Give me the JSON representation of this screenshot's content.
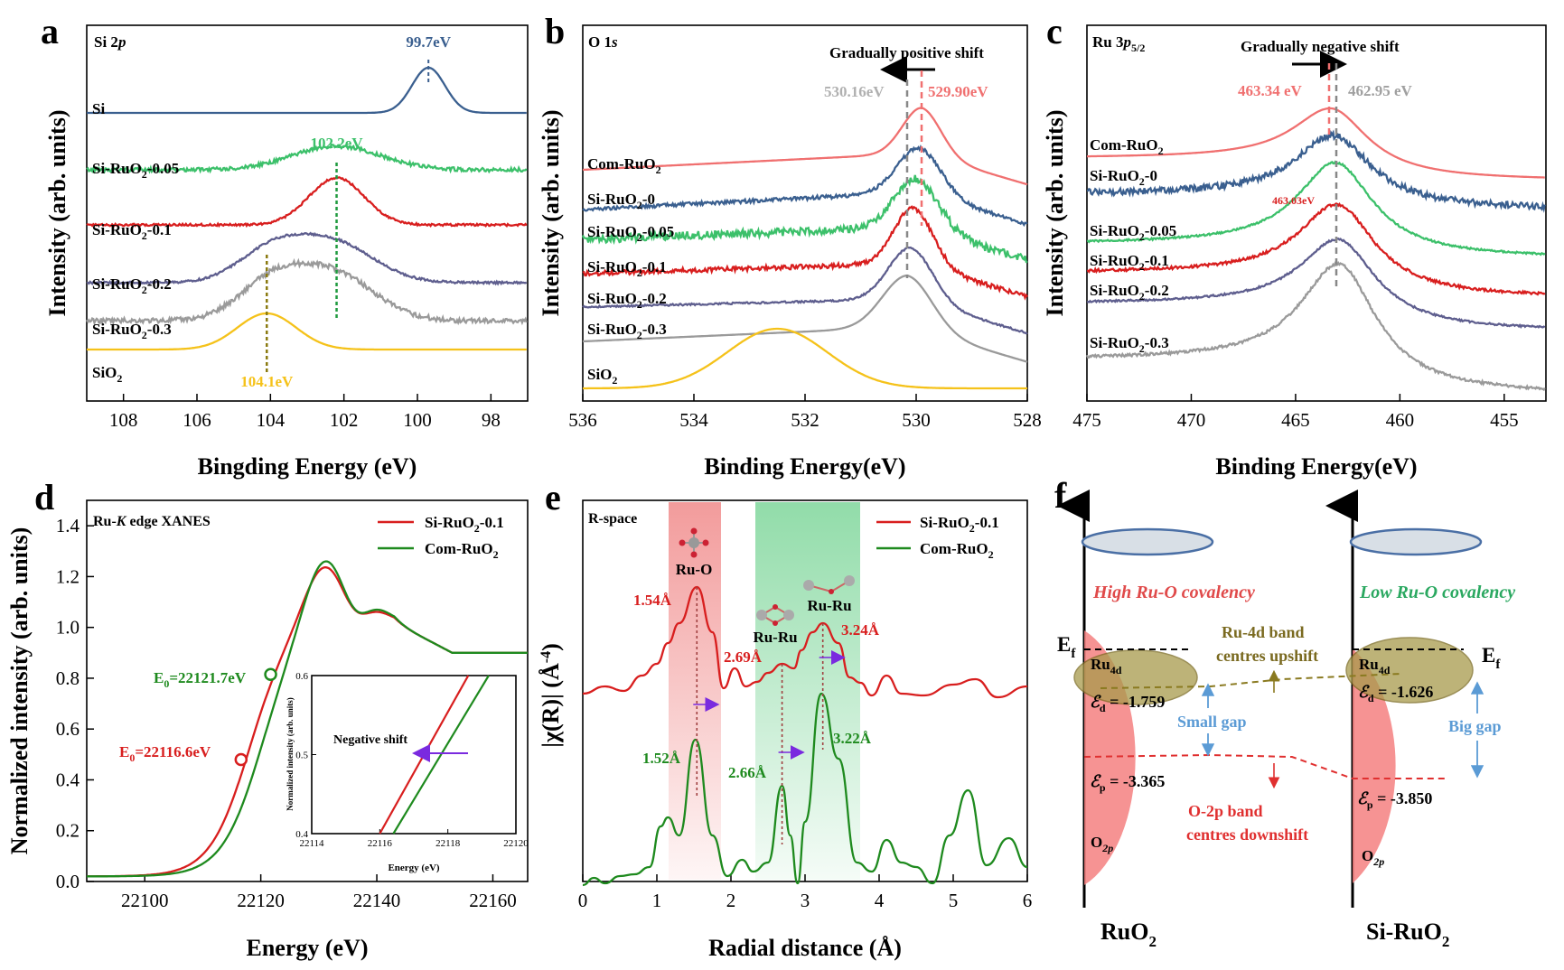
{
  "colors": {
    "blue": "#3a5f8f",
    "green": "#3cc06a",
    "red": "#d81e1e",
    "purple": "#5e5e8e",
    "gray": "#9a9a9a",
    "yellow": "#f5c21a",
    "salmon": "#f07070",
    "darkgreen": "#1e8a1e",
    "olive": "#7a6a20"
  },
  "panels": [
    {
      "id": "a",
      "letter": "a",
      "title": "Si 2p"
    },
    {
      "id": "b",
      "letter": "b",
      "title": "O 1s"
    },
    {
      "id": "c",
      "letter": "c",
      "title": "Ru 3p5/2"
    },
    {
      "id": "d",
      "letter": "d",
      "title": "Ru-K edge XANES"
    },
    {
      "id": "e",
      "letter": "e",
      "title": "R-space"
    },
    {
      "id": "f",
      "letter": "f"
    }
  ],
  "chart_data": [
    {
      "panel": "a",
      "type": "line",
      "title": "Si 2p",
      "xlabel": "Bingding Energy (eV)",
      "ylabel": "Intensity (arb. units)",
      "xlim": [
        109,
        97
      ],
      "x_reversed": true,
      "xticks": [
        108,
        106,
        104,
        102,
        100,
        98
      ],
      "series": [
        {
          "name": "Si",
          "color": "#3a5f8f",
          "peak": 99.7,
          "width": 0.45,
          "height": 1.1,
          "base": 4.55,
          "noise": 0.0
        },
        {
          "name": "Si-RuO2-0.05",
          "color": "#3cc06a",
          "peak": 102.2,
          "width": 1.2,
          "height": 0.55,
          "base": 3.05,
          "noise": 0.07
        },
        {
          "name": "Si-RuO2-0.1",
          "color": "#d81e1e",
          "peak": 102.2,
          "width": 0.75,
          "height": 1.05,
          "base": 2.15,
          "noise": 0.04
        },
        {
          "name": "Si-RuO2-0.2",
          "color": "#5e5e8e",
          "peak": 102.6,
          "width": 1.5,
          "height": 1.0,
          "base": 1.35,
          "noise": 0.04
        },
        {
          "name": "Si-RuO2-0.3",
          "color": "#9a9a9a",
          "peak": 103.0,
          "width": 1.4,
          "height": 1.0,
          "base": 0.55,
          "noise": 0.09
        },
        {
          "name": "SiO2",
          "color": "#f5c21a",
          "peak": 104.1,
          "width": 0.8,
          "height": 0.85,
          "base": 0.0,
          "noise": 0.0
        }
      ],
      "peak_labels": [
        {
          "text": "99.7eV",
          "x": 99.7,
          "color": "#3a5f8f"
        },
        {
          "text": "102.2eV",
          "x": 102.2,
          "color": "#3cc06a"
        },
        {
          "text": "104.1eV",
          "x": 104.1,
          "color": "#f5c21a"
        }
      ]
    },
    {
      "panel": "b",
      "type": "line",
      "title": "O 1s",
      "xlabel": "Binding Energy(eV)",
      "ylabel": "Intensity (arb. units)",
      "xlim": [
        536,
        528
      ],
      "x_reversed": true,
      "xticks": [
        536,
        534,
        532,
        530,
        528
      ],
      "series": [
        {
          "name": "Com-RuO2",
          "color": "#f07070",
          "peak": 529.9,
          "width": 0.35
        },
        {
          "name": "Si-RuO2-0",
          "color": "#3a5f8f",
          "peak": 529.95,
          "width": 0.4
        },
        {
          "name": "Si-RuO2-0.05",
          "color": "#3cc06a",
          "peak": 530.0,
          "width": 0.4
        },
        {
          "name": "Si-RuO2-0.1",
          "color": "#d81e1e",
          "peak": 530.05,
          "width": 0.35
        },
        {
          "name": "Si-RuO2-0.2",
          "color": "#5e5e8e",
          "peak": 530.1,
          "width": 0.4
        },
        {
          "name": "Si-RuO2-0.3",
          "color": "#9a9a9a",
          "peak": 530.16,
          "width": 0.45
        },
        {
          "name": "SiO2",
          "color": "#f5c21a",
          "peak": 532.5,
          "width": 0.9
        }
      ],
      "annotations": {
        "shift": "Gradually positive shift",
        "left_value": "530.16eV",
        "right_value": "529.90eV"
      }
    },
    {
      "panel": "c",
      "type": "line",
      "title": "Ru 3p5/2",
      "xlabel": "Binding Energy(eV)",
      "ylabel": "Intensity (arb. units)",
      "xlim": [
        475,
        453
      ],
      "x_reversed": true,
      "xticks": [
        475,
        470,
        465,
        460,
        455
      ],
      "series": [
        {
          "name": "Com-RuO2",
          "color": "#f07070",
          "peak": 463.34
        },
        {
          "name": "Si-RuO2-0",
          "color": "#3a5f8f",
          "peak": 463.2
        },
        {
          "name": "Si-RuO2-0.05",
          "color": "#3cc06a",
          "peak": 463.1
        },
        {
          "name": "Si-RuO2-0.1",
          "color": "#d81e1e",
          "peak": 463.03
        },
        {
          "name": "Si-RuO2-0.2",
          "color": "#5e5e8e",
          "peak": 462.98
        },
        {
          "name": "Si-RuO2-0.3",
          "color": "#9a9a9a",
          "peak": 462.95
        }
      ],
      "annotations": {
        "shift": "Gradually negative shift",
        "left_value": "463.34 eV",
        "right_value": "462.95 eV",
        "mid_value": "463.03eV"
      }
    },
    {
      "panel": "d",
      "type": "line",
      "title": "Ru-K edge XANES",
      "xlabel": "Energy (eV)",
      "ylabel": "Normalized intensity (arb. units)",
      "xlim": [
        22090,
        22166
      ],
      "ylim": [
        0,
        1.5
      ],
      "xticks": [
        22100,
        22120,
        22140,
        22160
      ],
      "yticks": [
        0.0,
        0.2,
        0.4,
        0.6,
        0.8,
        1.0,
        1.2,
        1.4
      ],
      "series": [
        {
          "name": "Si-RuO2-0.1",
          "color": "#d81e1e",
          "E0": 22116.6
        },
        {
          "name": "Com-RuO2",
          "color": "#1e8a1e",
          "E0": 22121.7
        }
      ],
      "e0_labels": [
        {
          "text": "E0=22116.6eV",
          "color": "#d81e1e"
        },
        {
          "text": "E0=22121.7eV",
          "color": "#1e8a1e"
        }
      ],
      "inset": {
        "xlabel": "Energy (eV)",
        "ylabel": "Normalized intensity (arb. units)",
        "xlim": [
          22114,
          22120
        ],
        "ylim": [
          0.4,
          0.6
        ],
        "xticks": [
          22114,
          22116,
          22118,
          22120
        ],
        "yticks": [
          0.4,
          0.5,
          0.6
        ],
        "note": "Negative shift"
      }
    },
    {
      "panel": "e",
      "type": "line",
      "title": "R-space",
      "xlabel": "Radial distance (Å)",
      "ylabel": "|χ(R)| (Å-4)",
      "xlim": [
        0,
        6
      ],
      "xticks": [
        0,
        1,
        2,
        3,
        4,
        5,
        6
      ],
      "series": [
        {
          "name": "Si-RuO2-0.1",
          "color": "#d81e1e",
          "peaks": [
            1.54,
            2.69,
            3.24
          ]
        },
        {
          "name": "Com-RuO2",
          "color": "#1e8a1e",
          "peaks": [
            1.52,
            2.66,
            3.22
          ]
        }
      ],
      "labels": {
        "ruo": "Ru-O",
        "ruru1": "Ru-Ru",
        "ruru2": "Ru-Ru",
        "red_vals": [
          "1.54Å",
          "2.69Å",
          "3.24Å"
        ],
        "green_vals": [
          "1.52Å",
          "2.66Å",
          "3.22Å"
        ]
      }
    }
  ],
  "panel_f": {
    "high": "High Ru-O covalency",
    "low": "Low Ru-O covalency",
    "ru4d_shift_1": "Ru-4d band",
    "ru4d_shift_2": "centres upshift",
    "o2p_shift_1": "O-2p band",
    "o2p_shift_2": "centres downshift",
    "small_gap": "Small gap",
    "big_gap": "Big gap",
    "ed_left": "-1.759",
    "ed_right": "-1.626",
    "ep_left": "-3.365",
    "ep_right": "-3.850",
    "left_name": "RuO2",
    "right_name": "Si-RuO2",
    "ef": "Ef"
  }
}
